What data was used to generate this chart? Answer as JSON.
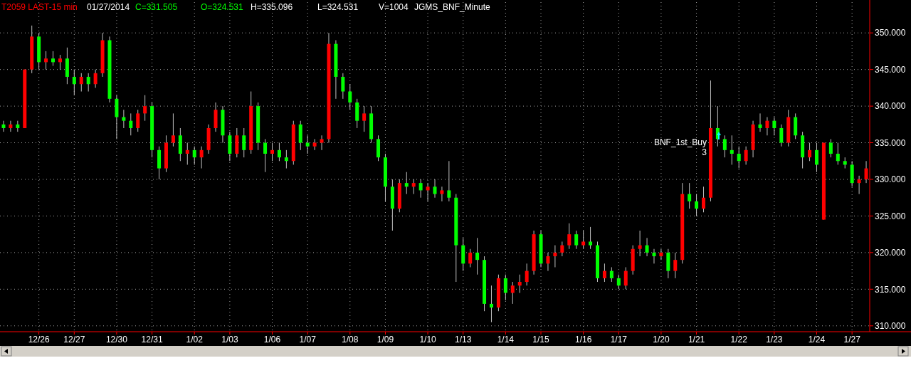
{
  "chart_data": {
    "type": "candlestick",
    "title": "T2059 LAST-15 min",
    "annotations": [
      "01/27/2014",
      "C=331.505",
      "O=324.531",
      "H=335.096",
      "L=324.531",
      "V=1004",
      "JGMS_BNF_Minute",
      "BNF_1st_Buy 3"
    ],
    "grid": true,
    "categories": [
      null,
      null,
      null,
      null,
      null,
      "12/26",
      null,
      null,
      null,
      null,
      "12/27",
      null,
      null,
      null,
      null,
      null,
      "12/30",
      null,
      null,
      null,
      null,
      "12/31",
      null,
      null,
      null,
      null,
      null,
      "1/02",
      null,
      null,
      null,
      null,
      "1/03",
      null,
      null,
      null,
      null,
      null,
      "1/06",
      null,
      null,
      null,
      null,
      "1/07",
      null,
      null,
      null,
      null,
      null,
      "1/08",
      null,
      null,
      null,
      null,
      "1/09",
      null,
      null,
      null,
      null,
      null,
      "1/10",
      null,
      null,
      null,
      null,
      "1/13",
      null,
      null,
      null,
      null,
      null,
      "1/14",
      null,
      null,
      null,
      null,
      "1/15",
      null,
      null,
      null,
      null,
      null,
      "1/16",
      null,
      null,
      null,
      null,
      "1/17",
      null,
      null,
      null,
      null,
      null,
      "1/20",
      null,
      null,
      null,
      null,
      "1/21",
      null,
      null,
      null,
      null,
      null,
      "1/22",
      null,
      null,
      null,
      null,
      "1/23",
      null,
      null,
      null,
      null,
      null,
      "1/24",
      null,
      null,
      null,
      null,
      "1/27",
      null,
      null
    ],
    "ylim": [
      309.2,
      354.2
    ],
    "yticks": [
      {
        "value": 310,
        "label": "310.000"
      },
      {
        "value": 315,
        "label": "315.000"
      },
      {
        "value": 320,
        "label": "320.000"
      },
      {
        "value": 325,
        "label": "325.000"
      },
      {
        "value": 330,
        "label": "330.000"
      },
      {
        "value": 335,
        "label": "335.000"
      },
      {
        "value": 340,
        "label": "340.000"
      },
      {
        "value": 345,
        "label": "345.000"
      },
      {
        "value": 350,
        "label": "350.000"
      }
    ],
    "colors": [
      "#00ff00",
      "#ff0000",
      "#00ff00",
      "#ff0000",
      "#ff0000",
      "#00ff00",
      "#ff0000",
      "#00ff00",
      "#ff0000",
      "#00ff00",
      "#00ff00",
      "#ff0000",
      "#00ff00",
      "#ff0000",
      "#ff0000",
      "#00ff00",
      "#00ff00",
      "#00ff00",
      "#00ff00",
      "#ff0000",
      "#ff0000",
      "#00ff00",
      "#00ff00",
      "#ff0000",
      "#ff0000",
      "#00ff00",
      "#ff0000",
      "#00ff00",
      "#ff0000",
      "#ff0000",
      "#ff0000",
      "#00ff00",
      "#00ff00",
      "#ff0000",
      "#00ff00",
      "#ff0000",
      "#00ff00",
      "#00ff00",
      "#ff0000",
      "#00ff00",
      "#00ff00",
      "#ff0000",
      "#00ff00",
      "#00ff00",
      "#ff0000",
      "#ff0000",
      "#ff0000",
      "#00ff00",
      "#00ff00",
      "#00ff00",
      "#00ff00",
      "#ff0000",
      "#00ff00",
      "#00ff00",
      "#00ff00",
      "#00ff00",
      "#ff0000",
      "#00ff00",
      "#ff0000",
      "#00ff00",
      "#ff0000",
      "#00ff00",
      "#ff0000",
      "#00ff00",
      "#00ff00",
      "#00ff00",
      "#ff0000",
      "#00ff00",
      "#00ff00",
      "#00ff00",
      "#ff0000",
      "#00ff00",
      "#ff0000",
      "#ff0000",
      "#ff0000",
      "#ff0000",
      "#00ff00",
      "#ff0000",
      "#ff0000",
      "#ff0000",
      "#ff0000",
      "#00ff00",
      "#ff0000",
      "#00ff00",
      "#00ff00",
      "#ff0000",
      "#00ff00",
      "#00ff00",
      "#ff0000",
      "#ff0000",
      "#ff0000",
      "#00ff00",
      "#00ff00",
      "#ff0000",
      "#00ff00",
      "#ff0000",
      "#ff0000",
      "#00ff00",
      "#00ff00",
      "#ff0000",
      "#ff0000",
      "#00ff00",
      "#00ff00",
      "#00ff00",
      "#00ff00",
      "#ff0000",
      "#ff0000",
      "#00ff00",
      "#ff0000",
      "#00ff00",
      "#00ff00",
      "#ff0000",
      "#00ff00",
      "#00ff00",
      "#ff0000",
      "#00ff00",
      "#ff0000",
      "#00ff00",
      "#00ff00",
      "#00ff00",
      "#00ff00",
      "#ff0000",
      "#ff0000"
    ],
    "ohlc": [
      [
        337.5,
        338,
        336.5,
        337
      ],
      [
        337,
        338,
        336.5,
        337.5
      ],
      [
        337.5,
        338,
        336.5,
        337
      ],
      [
        337,
        345,
        337,
        345
      ],
      [
        345,
        351,
        344.5,
        349.5
      ],
      [
        349.5,
        350,
        345,
        346
      ],
      [
        346,
        347.5,
        345,
        346.5
      ],
      [
        346.5,
        347.5,
        345.5,
        346
      ],
      [
        346,
        347,
        345,
        346.5
      ],
      [
        346.5,
        348,
        343,
        344
      ],
      [
        344,
        345,
        341.5,
        343
      ],
      [
        343,
        344.5,
        342,
        344
      ],
      [
        344,
        344.5,
        342,
        343
      ],
      [
        343,
        345,
        342.5,
        344.5
      ],
      [
        344.5,
        350,
        344,
        349
      ],
      [
        349,
        349.5,
        340.5,
        341
      ],
      [
        341,
        341.5,
        335.5,
        338.5
      ],
      [
        338.5,
        339.5,
        337,
        338
      ],
      [
        338,
        339,
        336,
        337
      ],
      [
        337,
        339.5,
        336.5,
        339
      ],
      [
        339,
        341.5,
        338,
        340
      ],
      [
        340,
        340.5,
        333,
        334
      ],
      [
        334,
        334.5,
        330,
        331.5
      ],
      [
        331.5,
        336,
        331,
        335
      ],
      [
        335,
        339,
        334.5,
        336
      ],
      [
        336,
        337,
        332.5,
        333.5
      ],
      [
        333.5,
        335,
        332,
        334
      ],
      [
        334,
        334.5,
        332,
        333
      ],
      [
        333,
        334.5,
        331.5,
        334
      ],
      [
        334,
        337.5,
        333.5,
        337
      ],
      [
        337,
        340.5,
        336.5,
        339.5
      ],
      [
        339.5,
        340,
        335,
        336
      ],
      [
        336,
        336.5,
        332.5,
        333.5
      ],
      [
        333.5,
        337,
        333,
        336
      ],
      [
        336,
        337,
        333,
        334
      ],
      [
        334,
        342,
        333.5,
        340
      ],
      [
        340,
        340.5,
        334,
        335
      ],
      [
        335,
        335.5,
        331,
        333.5
      ],
      [
        333.5,
        335,
        332.5,
        334
      ],
      [
        334,
        335,
        332.5,
        333
      ],
      [
        333,
        334,
        331.5,
        332.5
      ],
      [
        332.5,
        338,
        332,
        337.5
      ],
      [
        337.5,
        338,
        334,
        335
      ],
      [
        335,
        336,
        333.5,
        334.5
      ],
      [
        334.5,
        335.5,
        334,
        335
      ],
      [
        335,
        336,
        334,
        335.5
      ],
      [
        335.5,
        350,
        335,
        348.5
      ],
      [
        348.5,
        349,
        341,
        344
      ],
      [
        344,
        344.5,
        341,
        342
      ],
      [
        342,
        343,
        339.5,
        340.5
      ],
      [
        340.5,
        341,
        337,
        338
      ],
      [
        338,
        340,
        336.5,
        339
      ],
      [
        339,
        340,
        335,
        335.5
      ],
      [
        335.5,
        336,
        332.5,
        333
      ],
      [
        333,
        333.5,
        327,
        329
      ],
      [
        329,
        330,
        323,
        326
      ],
      [
        326,
        330,
        325.5,
        329.5
      ],
      [
        329.5,
        331,
        328,
        329
      ],
      [
        329,
        330,
        328,
        329.5
      ],
      [
        329.5,
        330,
        327.5,
        328.5
      ],
      [
        328.5,
        329.5,
        327,
        329
      ],
      [
        329,
        330,
        327.5,
        328
      ],
      [
        328,
        329,
        327,
        328.5
      ],
      [
        328.5,
        332.5,
        327,
        327.5
      ],
      [
        327.5,
        328,
        316,
        321
      ],
      [
        321,
        322,
        317.5,
        318.5
      ],
      [
        318.5,
        320.5,
        318,
        320
      ],
      [
        320,
        322,
        317,
        319
      ],
      [
        319,
        319.5,
        312,
        313
      ],
      [
        313,
        315.5,
        310.5,
        312.5
      ],
      [
        312.5,
        317,
        312,
        316.5
      ],
      [
        316.5,
        317,
        313.5,
        314.5
      ],
      [
        314.5,
        316,
        313,
        315.5
      ],
      [
        315.5,
        317,
        314.5,
        316
      ],
      [
        316,
        318.5,
        315.5,
        317.5
      ],
      [
        317.5,
        323,
        317,
        322.5
      ],
      [
        322.5,
        323,
        318,
        318.5
      ],
      [
        318.5,
        320,
        317.5,
        319.5
      ],
      [
        319.5,
        321,
        318,
        320
      ],
      [
        320,
        321.5,
        319.5,
        321
      ],
      [
        321,
        324,
        320.5,
        322.5
      ],
      [
        322.5,
        323,
        320.5,
        321
      ],
      [
        321,
        323,
        320.5,
        321.5
      ],
      [
        321.5,
        323.5,
        320.5,
        321
      ],
      [
        321,
        321.5,
        316,
        316.5
      ],
      [
        316.5,
        318.5,
        316,
        317.5
      ],
      [
        317.5,
        318,
        316,
        316.5
      ],
      [
        316.5,
        317,
        315,
        315.5
      ],
      [
        315.5,
        318,
        315,
        317.5
      ],
      [
        317.5,
        321,
        317,
        320.5
      ],
      [
        320.5,
        323,
        319.5,
        321
      ],
      [
        321,
        322,
        319.5,
        320
      ],
      [
        320,
        320.5,
        318.5,
        319.5
      ],
      [
        319.5,
        320.5,
        319,
        320
      ],
      [
        320,
        320.5,
        316.5,
        317.5
      ],
      [
        317.5,
        320,
        316.5,
        319
      ],
      [
        319,
        329.5,
        318.5,
        328
      ],
      [
        328,
        329.5,
        326,
        327
      ],
      [
        327,
        328,
        325,
        326
      ],
      [
        326,
        329,
        325.5,
        327.5
      ],
      [
        327.5,
        343.5,
        327,
        337
      ],
      [
        337,
        340,
        334.5,
        335.5
      ],
      [
        335.5,
        336,
        333,
        334
      ],
      [
        334,
        336,
        332,
        333.5
      ],
      [
        333.5,
        334.5,
        331.5,
        332.5
      ],
      [
        332.5,
        334.5,
        332,
        334
      ],
      [
        334,
        338,
        333,
        337.5
      ],
      [
        337.5,
        339,
        336.5,
        337
      ],
      [
        337,
        338.5,
        336,
        338
      ],
      [
        338,
        338.5,
        336,
        337
      ],
      [
        337,
        337.5,
        334.5,
        335
      ],
      [
        335,
        339.5,
        334.5,
        338.5
      ],
      [
        338.5,
        339,
        335.5,
        336
      ],
      [
        336,
        336.5,
        331.5,
        333
      ],
      [
        333,
        335,
        332.5,
        334
      ],
      [
        334,
        335,
        331,
        332
      ],
      [
        324.5,
        335,
        324.5,
        335
      ],
      [
        335,
        335.5,
        333,
        333.5
      ],
      [
        333.5,
        335,
        332,
        332.5
      ],
      [
        332.5,
        333,
        331.5,
        332
      ],
      [
        332,
        332.5,
        329,
        329.5
      ],
      [
        329.5,
        330.5,
        328,
        330
      ],
      [
        330,
        332.5,
        329.5,
        331.5
      ]
    ]
  }
}
